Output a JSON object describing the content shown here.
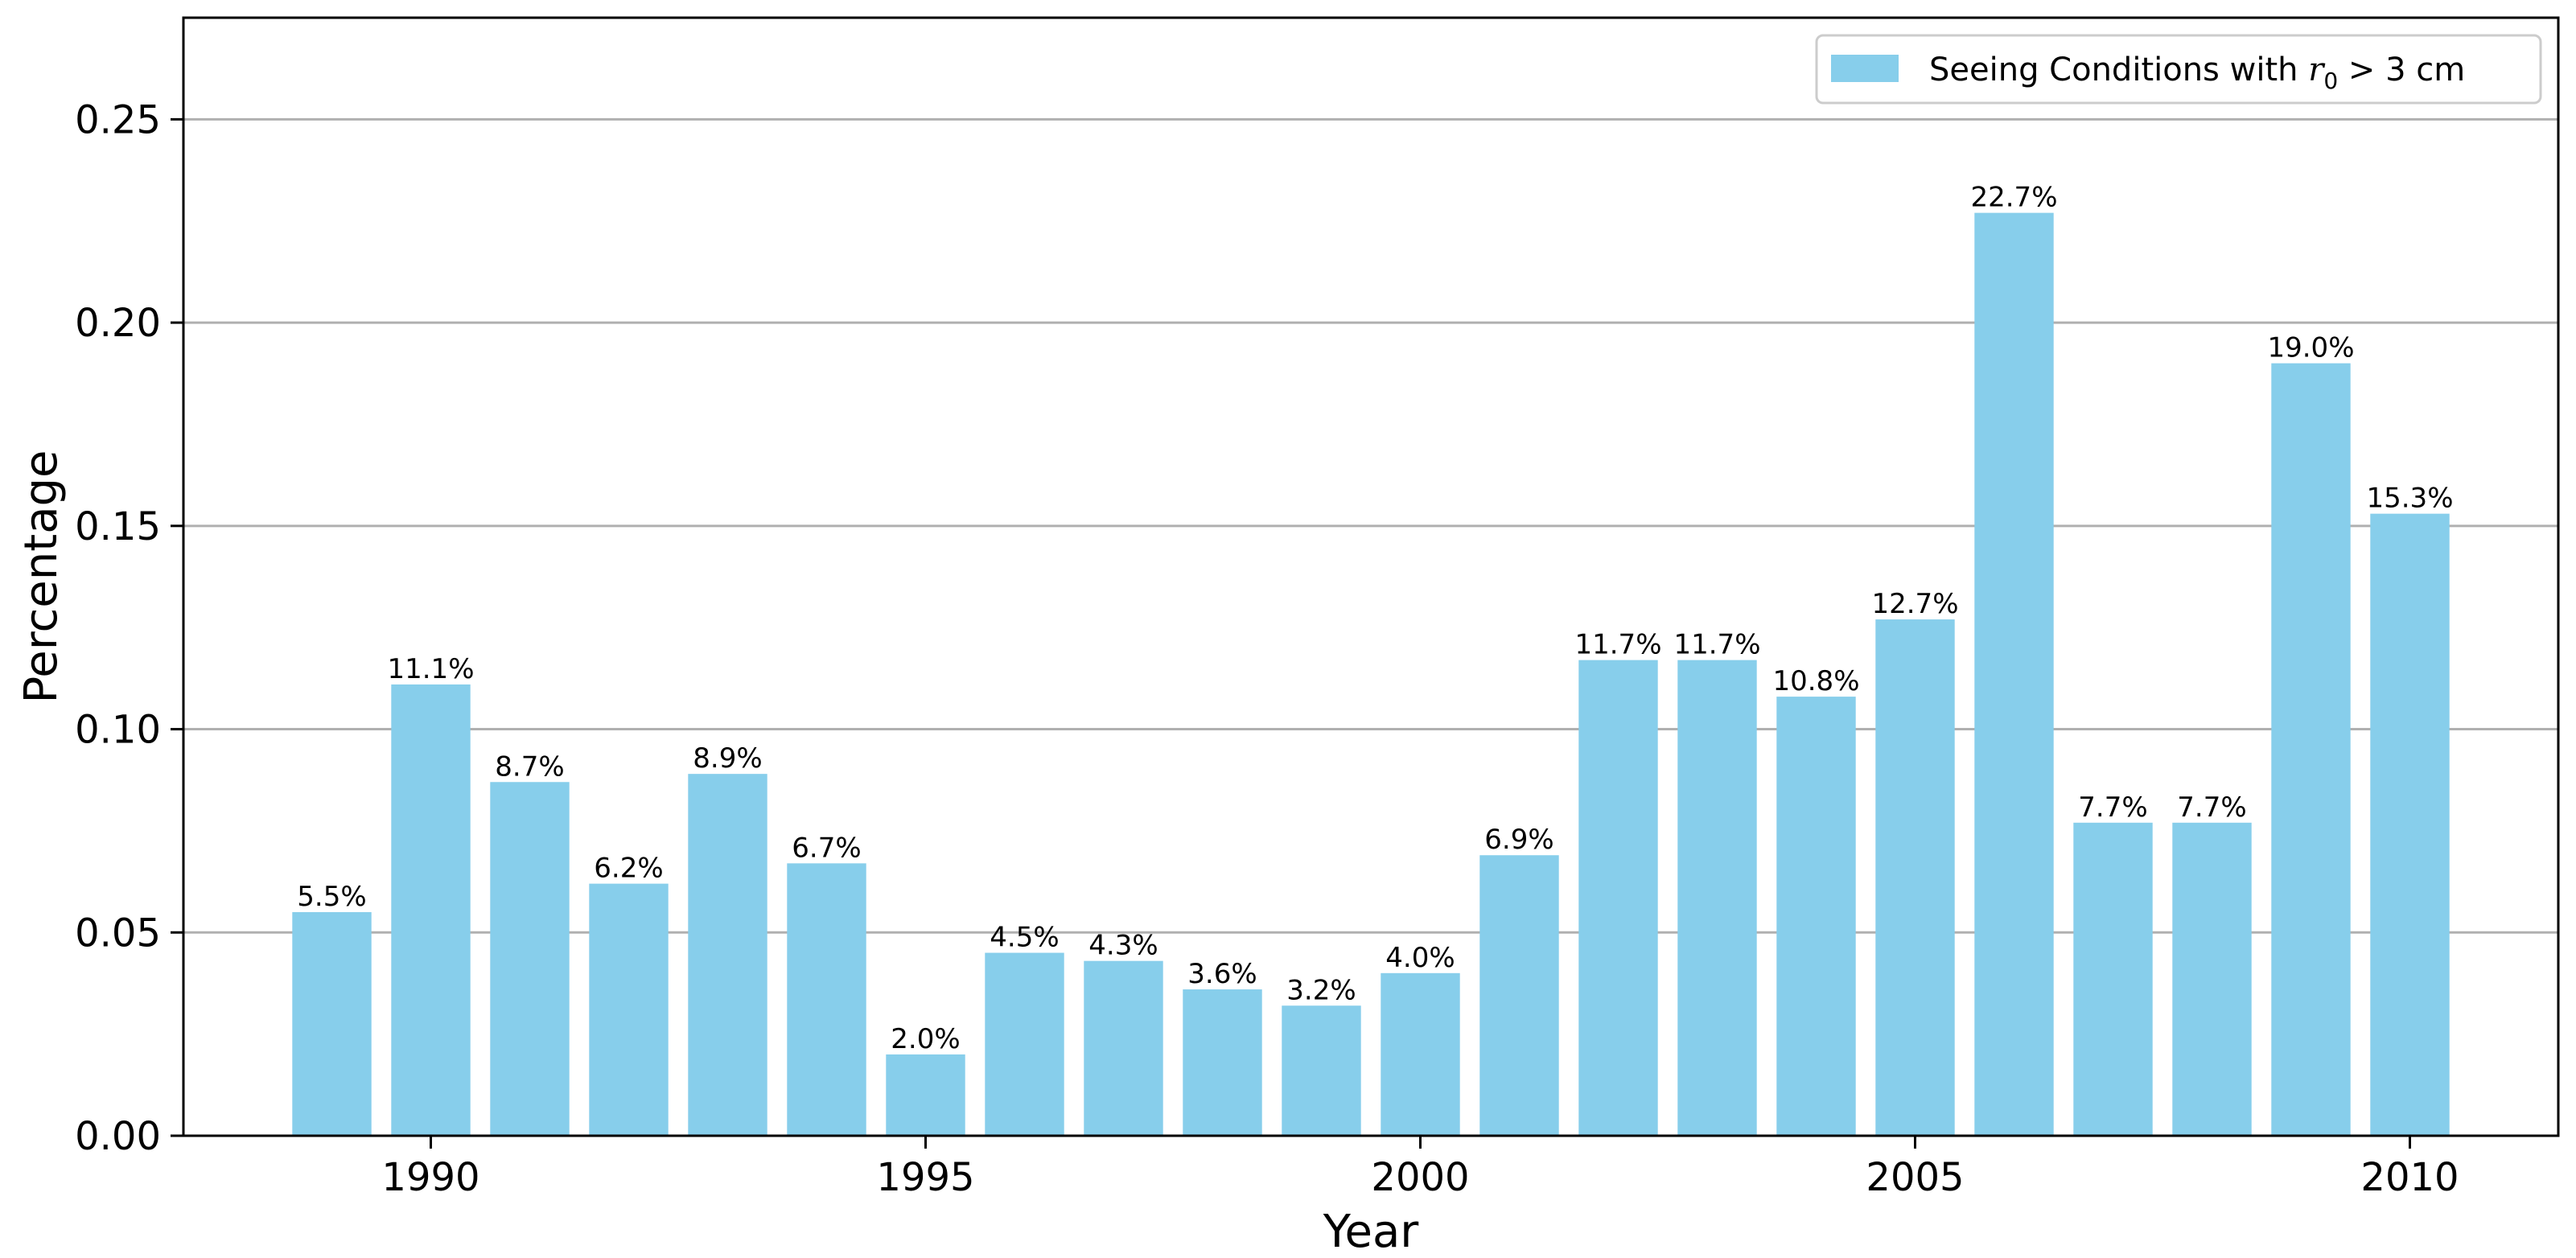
{
  "chart_data": {
    "type": "bar",
    "x": [
      1989,
      1990,
      1991,
      1992,
      1993,
      1994,
      1995,
      1996,
      1997,
      1998,
      1999,
      2000,
      2001,
      2002,
      2003,
      2004,
      2005,
      2006,
      2007,
      2008,
      2009,
      2010
    ],
    "values": [
      0.055,
      0.111,
      0.087,
      0.062,
      0.089,
      0.067,
      0.02,
      0.045,
      0.043,
      0.036,
      0.032,
      0.04,
      0.069,
      0.117,
      0.117,
      0.108,
      0.127,
      0.227,
      0.077,
      0.077,
      0.19,
      0.153
    ],
    "data_labels": [
      "5.5%",
      "11.1%",
      "8.7%",
      "6.2%",
      "8.9%",
      "6.7%",
      "2.0%",
      "4.5%",
      "4.3%",
      "3.6%",
      "3.2%",
      "4.0%",
      "6.9%",
      "11.7%",
      "11.7%",
      "10.8%",
      "12.7%",
      "22.7%",
      "7.7%",
      "7.7%",
      "19.0%",
      "15.3%"
    ],
    "xlabel": "Year",
    "ylabel": "Percentage",
    "xlim": [
      1987.5,
      2011.5
    ],
    "ylim": [
      0,
      0.275
    ],
    "xticks": [
      1990,
      1995,
      2000,
      2005,
      2010
    ],
    "xtick_labels": [
      "1990",
      "1995",
      "2000",
      "2005",
      "2010"
    ],
    "yticks": [
      0,
      0.05,
      0.1,
      0.15,
      0.2,
      0.25
    ],
    "ytick_labels": [
      "0.00",
      "0.05",
      "0.10",
      "0.15",
      "0.20",
      "0.25"
    ],
    "grid": "horizontal",
    "legend": {
      "placement": "top-right",
      "text_prefix": "Seeing Conditions with ",
      "symbol": "r",
      "subscript": "0",
      "text_suffix": " > 3 cm"
    },
    "colors": {
      "bar": "#87ceeb",
      "grid": "#b0b0b0",
      "axis": "#000000"
    }
  }
}
